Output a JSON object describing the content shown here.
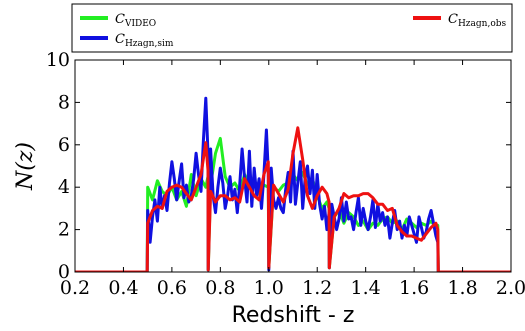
{
  "chart_data": {
    "type": "line",
    "xlabel": "Redshift - z",
    "ylabel": "N(z)",
    "xlim": [
      0.2,
      2.0
    ],
    "ylim": [
      0,
      10
    ],
    "xticks": [
      "0.2",
      "0.4",
      "0.6",
      "0.8",
      "1.0",
      "1.2",
      "1.4",
      "1.6",
      "1.8",
      "2.0"
    ],
    "yticks": [
      "0",
      "2",
      "4",
      "6",
      "8",
      "10"
    ],
    "legend_position": "top",
    "grid": false,
    "series": [
      {
        "name": "C",
        "subscript": "VIDEO",
        "color": "#22ee22",
        "x": [
          0.2,
          0.498,
          0.5,
          0.52,
          0.54,
          0.56,
          0.58,
          0.6,
          0.62,
          0.64,
          0.66,
          0.68,
          0.7,
          0.72,
          0.74,
          0.749,
          0.75,
          0.76,
          0.78,
          0.8,
          0.82,
          0.84,
          0.86,
          0.88,
          0.9,
          0.92,
          0.94,
          0.96,
          0.98,
          0.998,
          1.0,
          1.02,
          1.04,
          1.06,
          1.08,
          1.1,
          1.12,
          1.14,
          1.16,
          1.18,
          1.2,
          1.22,
          1.24,
          1.249,
          1.25,
          1.27,
          1.29,
          1.31,
          1.33,
          1.35,
          1.37,
          1.39,
          1.41,
          1.43,
          1.45,
          1.47,
          1.49,
          1.51,
          1.53,
          1.55,
          1.57,
          1.59,
          1.61,
          1.63,
          1.65,
          1.67,
          1.69,
          1.698,
          1.7,
          2.0
        ],
        "y": [
          0,
          0,
          4.0,
          3.4,
          4.3,
          3.8,
          3.6,
          4.0,
          3.4,
          3.8,
          3.1,
          4.6,
          3.6,
          4.4,
          4.0,
          4.5,
          0.1,
          4.1,
          5.6,
          6.3,
          4.5,
          4.0,
          4.2,
          3.8,
          4.6,
          4.1,
          4.3,
          3.7,
          4.1,
          4.0,
          0.2,
          4.0,
          3.8,
          4.1,
          4.2,
          4.6,
          4.3,
          4.7,
          4.1,
          4.4,
          3.6,
          3.0,
          3.3,
          3.0,
          0.2,
          2.6,
          2.9,
          2.3,
          2.8,
          2.6,
          2.2,
          2.4,
          2.0,
          2.3,
          2.2,
          2.5,
          2.6,
          2.3,
          2.4,
          2.0,
          2.5,
          2.3,
          2.1,
          2.3,
          2.2,
          2.4,
          2.1,
          2.2,
          0,
          0
        ]
      },
      {
        "name": "C",
        "subscript": "Hzagn,sim",
        "color": "#1010e0",
        "x": [
          0.2,
          0.498,
          0.5,
          0.51,
          0.52,
          0.53,
          0.54,
          0.55,
          0.56,
          0.57,
          0.58,
          0.59,
          0.6,
          0.61,
          0.62,
          0.63,
          0.64,
          0.65,
          0.66,
          0.67,
          0.68,
          0.69,
          0.7,
          0.71,
          0.72,
          0.73,
          0.74,
          0.749,
          0.75,
          0.76,
          0.77,
          0.78,
          0.79,
          0.8,
          0.81,
          0.82,
          0.83,
          0.84,
          0.85,
          0.86,
          0.87,
          0.88,
          0.89,
          0.9,
          0.91,
          0.92,
          0.93,
          0.94,
          0.95,
          0.96,
          0.97,
          0.98,
          0.99,
          0.998,
          1.0,
          1.01,
          1.02,
          1.03,
          1.04,
          1.05,
          1.06,
          1.07,
          1.08,
          1.09,
          1.1,
          1.11,
          1.12,
          1.13,
          1.14,
          1.15,
          1.16,
          1.17,
          1.18,
          1.19,
          1.2,
          1.21,
          1.22,
          1.23,
          1.24,
          1.249,
          1.25,
          1.26,
          1.27,
          1.28,
          1.29,
          1.3,
          1.31,
          1.32,
          1.33,
          1.34,
          1.35,
          1.36,
          1.37,
          1.38,
          1.39,
          1.4,
          1.41,
          1.42,
          1.43,
          1.44,
          1.45,
          1.46,
          1.47,
          1.48,
          1.49,
          1.5,
          1.51,
          1.52,
          1.53,
          1.54,
          1.55,
          1.56,
          1.57,
          1.58,
          1.59,
          1.6,
          1.61,
          1.62,
          1.63,
          1.64,
          1.65,
          1.66,
          1.67,
          1.68,
          1.69,
          1.698,
          1.7,
          2.0
        ],
        "y": [
          0,
          0,
          2.9,
          1.4,
          2.6,
          3.4,
          2.4,
          4.0,
          3.0,
          3.6,
          2.9,
          4.2,
          5.2,
          4.4,
          3.4,
          4.3,
          5.1,
          3.5,
          4.1,
          3.3,
          3.6,
          4.4,
          5.6,
          4.6,
          3.8,
          6.2,
          8.2,
          5.6,
          0.1,
          5.8,
          3.6,
          2.8,
          4.0,
          4.9,
          4.2,
          3.0,
          3.6,
          4.5,
          3.4,
          3.9,
          2.8,
          4.1,
          5.8,
          4.4,
          3.3,
          5.7,
          3.1,
          4.9,
          3.6,
          4.4,
          3.0,
          4.6,
          6.7,
          4.7,
          0.1,
          4.9,
          3.4,
          3.0,
          3.5,
          3.0,
          2.8,
          3.9,
          4.7,
          3.3,
          5.7,
          3.2,
          4.2,
          5.2,
          3.0,
          4.4,
          5.0,
          3.7,
          4.8,
          3.0,
          4.6,
          3.2,
          2.5,
          3.1,
          2.0,
          2.8,
          0.2,
          3.2,
          2.6,
          2.0,
          2.5,
          3.5,
          2.4,
          3.3,
          2.5,
          2.6,
          2.0,
          2.8,
          3.5,
          2.2,
          3.0,
          2.4,
          2.0,
          2.6,
          3.4,
          2.1,
          3.2,
          2.4,
          2.8,
          2.2,
          2.6,
          1.6,
          2.3,
          2.9,
          2.0,
          2.4,
          1.6,
          2.2,
          1.7,
          2.6,
          2.2,
          1.8,
          1.4,
          2.6,
          2.1,
          1.6,
          1.9,
          2.5,
          2.9,
          2.3,
          1.7,
          1.4,
          0,
          0
        ]
      },
      {
        "name": "C",
        "subscript": "Hzagn,obs",
        "color": "#ee1111",
        "x": [
          0.2,
          0.498,
          0.5,
          0.52,
          0.54,
          0.56,
          0.58,
          0.6,
          0.62,
          0.64,
          0.66,
          0.68,
          0.7,
          0.72,
          0.74,
          0.749,
          0.75,
          0.76,
          0.78,
          0.8,
          0.82,
          0.84,
          0.86,
          0.88,
          0.9,
          0.92,
          0.94,
          0.96,
          0.98,
          0.998,
          1.0,
          1.02,
          1.04,
          1.06,
          1.08,
          1.1,
          1.12,
          1.14,
          1.16,
          1.18,
          1.2,
          1.22,
          1.24,
          1.249,
          1.25,
          1.27,
          1.29,
          1.31,
          1.33,
          1.35,
          1.37,
          1.39,
          1.41,
          1.43,
          1.45,
          1.47,
          1.49,
          1.51,
          1.53,
          1.55,
          1.57,
          1.59,
          1.61,
          1.63,
          1.65,
          1.67,
          1.69,
          1.698,
          1.7,
          2.0
        ],
        "y": [
          0,
          0,
          2.3,
          2.9,
          3.1,
          3.0,
          3.8,
          4.0,
          4.1,
          4.0,
          3.7,
          3.4,
          4.0,
          4.6,
          6.1,
          4.8,
          0.1,
          3.8,
          3.3,
          3.6,
          3.6,
          3.4,
          3.5,
          3.3,
          4.4,
          4.0,
          3.6,
          3.4,
          4.6,
          5.2,
          0.2,
          4.1,
          3.7,
          3.3,
          3.9,
          5.6,
          6.8,
          5.3,
          3.6,
          3.0,
          3.6,
          4.0,
          3.7,
          3.3,
          0.2,
          2.6,
          3.0,
          3.7,
          3.5,
          3.6,
          3.6,
          3.7,
          3.7,
          3.5,
          3.2,
          3.2,
          2.9,
          3.0,
          2.2,
          1.9,
          1.7,
          1.7,
          1.6,
          1.5,
          1.8,
          2.1,
          2.3,
          2.0,
          0,
          0
        ]
      }
    ]
  }
}
